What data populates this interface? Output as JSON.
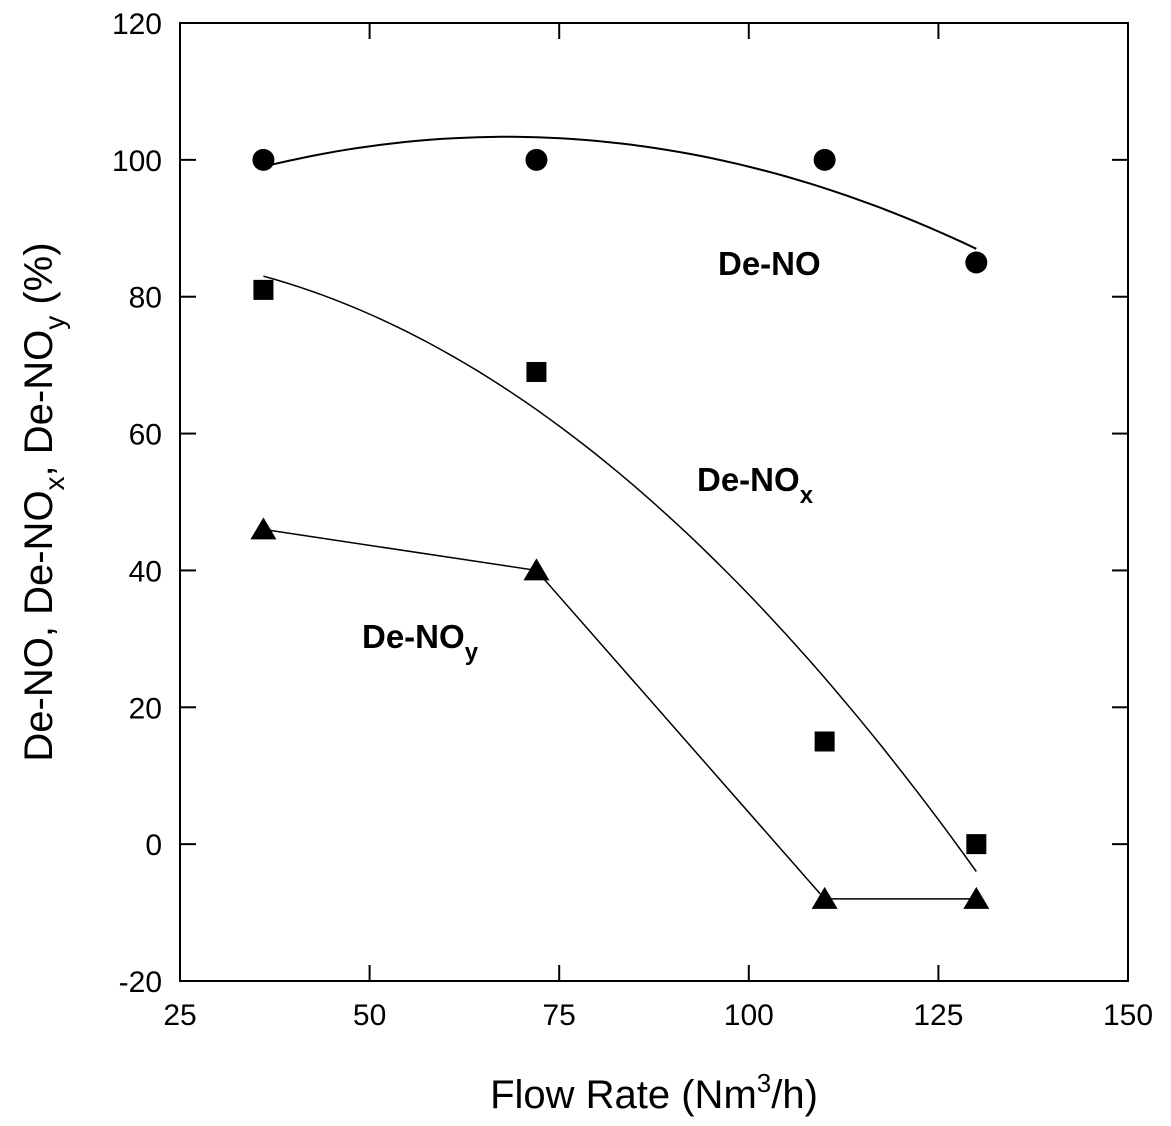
{
  "chart_data": {
    "type": "scatter",
    "xlabel": "Flow Rate (Nm3/h)",
    "xlabel_parts": {
      "main": "Flow Rate (Nm",
      "sup": "3",
      "tail": "/h)"
    },
    "ylabel": "De-NO, De-NOx, De-NOy (%)",
    "ylabel_parts": {
      "p1": "De-NO, De-NO",
      "s1": "x",
      "p2": ", De-NO",
      "s2": "y",
      "p3": " (%)"
    },
    "xlim": [
      25,
      150
    ],
    "ylim": [
      -20,
      120
    ],
    "xticks": [
      25,
      50,
      75,
      100,
      125,
      150
    ],
    "yticks": [
      -20,
      0,
      20,
      40,
      60,
      80,
      100,
      120
    ],
    "grid": false,
    "legend": "none",
    "series": [
      {
        "name": "De-NO",
        "marker": "circle",
        "x": [
          36,
          72,
          110,
          130
        ],
        "y": [
          100,
          100,
          100,
          85
        ],
        "fit": "quadratic",
        "fit_curve": {
          "x": [
            36,
            72,
            110,
            130
          ],
          "y": [
            99,
            103.3,
            96,
            87
          ]
        }
      },
      {
        "name": "De-NOx",
        "marker": "square",
        "x": [
          36,
          72,
          110,
          130
        ],
        "y": [
          81,
          69,
          15,
          0
        ],
        "fit": "quadratic",
        "fit_curve": {
          "x": [
            36,
            72,
            110,
            130
          ],
          "y": [
            83,
            63.5,
            24,
            -4
          ]
        }
      },
      {
        "name": "De-NOy",
        "marker": "triangle",
        "x": [
          36,
          72,
          110,
          130
        ],
        "y": [
          46,
          40,
          -8,
          -8
        ],
        "fit": "segments",
        "fit_curve": {
          "x": [
            36,
            72,
            110,
            130
          ],
          "y": [
            46,
            40,
            -8,
            -8
          ]
        }
      }
    ],
    "annotations": [
      {
        "series": 0,
        "main": "De-NO",
        "sub": ""
      },
      {
        "series": 1,
        "main": "De-NO",
        "sub": "x"
      },
      {
        "series": 2,
        "main": "De-NO",
        "sub": "y"
      }
    ]
  }
}
